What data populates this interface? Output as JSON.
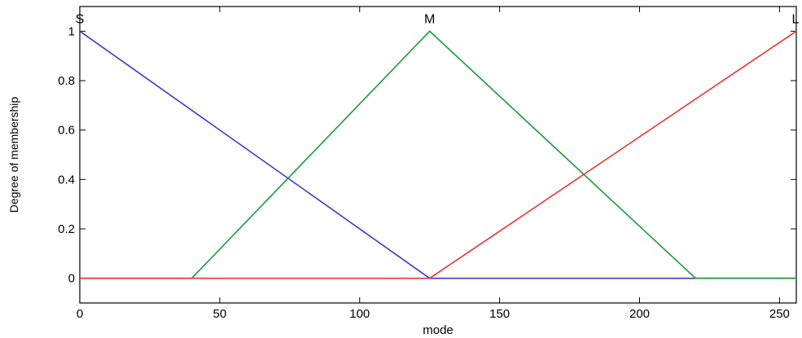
{
  "chart_data": {
    "type": "line",
    "title": "",
    "xlabel": "mode",
    "ylabel": "Degree of membership",
    "xlim": [
      0,
      256
    ],
    "ylim": [
      -0.1,
      1.1
    ],
    "grid": false,
    "x_ticks": [
      0,
      50,
      100,
      150,
      200,
      250
    ],
    "y_ticks": [
      0,
      0.2,
      0.4,
      0.6,
      0.8,
      1
    ],
    "x_tick_labels": [
      "0",
      "50",
      "100",
      "150",
      "200",
      "250"
    ],
    "y_tick_labels": [
      "0",
      "0.2",
      "0.4",
      "0.6",
      "0.8",
      "1"
    ],
    "series": [
      {
        "name": "S",
        "color": "#3a3ad0",
        "points": [
          [
            0,
            1
          ],
          [
            125,
            0
          ],
          [
            256,
            0
          ]
        ]
      },
      {
        "name": "M",
        "color": "#1a9a3a",
        "points": [
          [
            0,
            0
          ],
          [
            40,
            0
          ],
          [
            125,
            1
          ],
          [
            220,
            0
          ],
          [
            256,
            0
          ]
        ]
      },
      {
        "name": "L",
        "color": "#ee3333",
        "points": [
          [
            0,
            0
          ],
          [
            125,
            0
          ],
          [
            256,
            1
          ]
        ]
      }
    ],
    "annotations": [
      {
        "text": "S",
        "x": 0,
        "y": 1
      },
      {
        "text": "M",
        "x": 125,
        "y": 1
      },
      {
        "text": "L",
        "x": 256,
        "y": 1
      }
    ]
  }
}
